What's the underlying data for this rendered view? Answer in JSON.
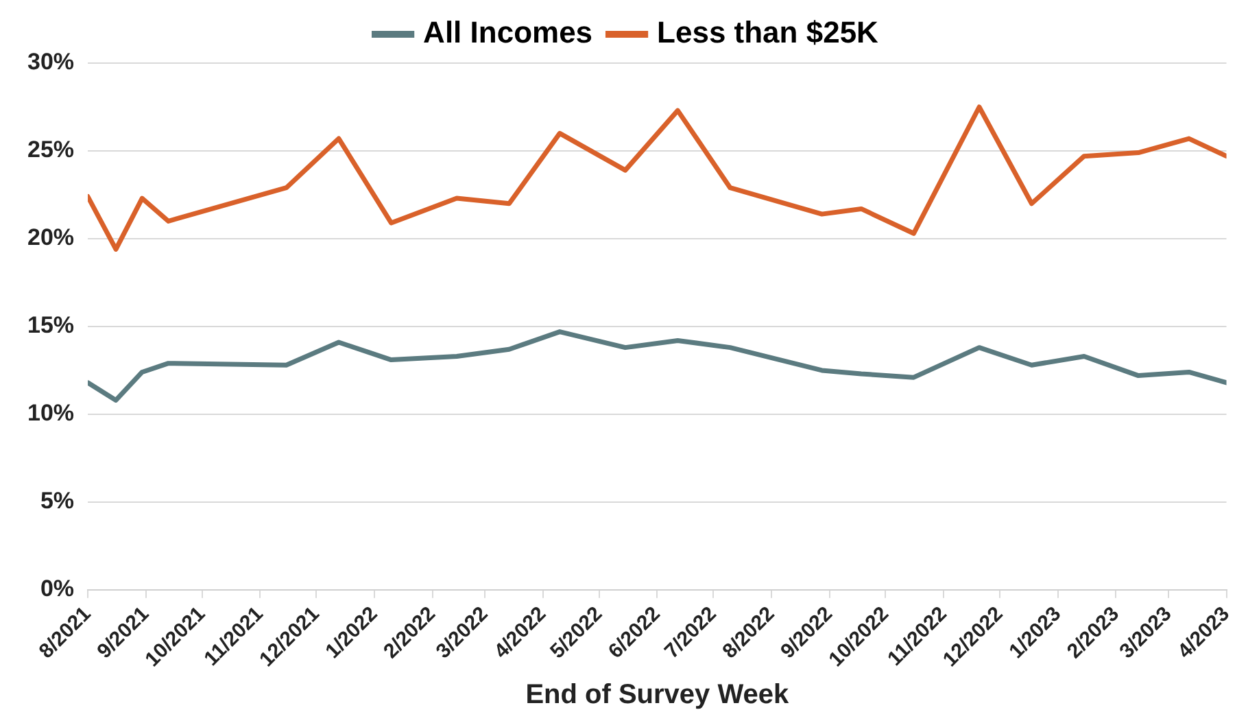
{
  "chart_data": {
    "type": "line",
    "xlabel": "End of Survey Week",
    "x": [
      "2021-08-01",
      "2021-08-16",
      "2021-08-30",
      "2021-09-13",
      "2021-11-15",
      "2021-12-13",
      "2022-01-10",
      "2022-02-14",
      "2022-03-14",
      "2022-04-10",
      "2022-05-15",
      "2022-06-12",
      "2022-07-10",
      "2022-08-28",
      "2022-09-18",
      "2022-10-16",
      "2022-11-20",
      "2022-12-18",
      "2023-01-15",
      "2023-02-13",
      "2023-03-12",
      "2023-04-01"
    ],
    "series": [
      {
        "name": "All Incomes",
        "color": "#5b7b80",
        "values": [
          11.8,
          10.8,
          12.4,
          12.9,
          12.8,
          14.1,
          13.1,
          13.3,
          13.7,
          14.7,
          13.8,
          14.2,
          13.8,
          12.5,
          12.3,
          12.1,
          13.8,
          12.8,
          13.3,
          12.2,
          12.4,
          11.8
        ]
      },
      {
        "name": "Less than $25K",
        "color": "#d9612a",
        "values": [
          22.4,
          19.4,
          22.3,
          21.0,
          22.9,
          25.7,
          20.9,
          22.3,
          22.0,
          26.0,
          23.9,
          27.3,
          22.9,
          21.4,
          21.7,
          20.3,
          27.5,
          22.0,
          24.7,
          24.9,
          25.7,
          24.7
        ]
      }
    ],
    "xlim": [
      "2021-08",
      "2023-04"
    ],
    "xticks": [
      {
        "value": "2021-08",
        "label": "8/2021"
      },
      {
        "value": "2021-09",
        "label": "9/2021"
      },
      {
        "value": "2021-10",
        "label": "10/2021"
      },
      {
        "value": "2021-11",
        "label": "11/2021"
      },
      {
        "value": "2021-12",
        "label": "12/2021"
      },
      {
        "value": "2022-01",
        "label": "1/2022"
      },
      {
        "value": "2022-02",
        "label": "2/2022"
      },
      {
        "value": "2022-03",
        "label": "3/2022"
      },
      {
        "value": "2022-04",
        "label": "4/2022"
      },
      {
        "value": "2022-05",
        "label": "5/2022"
      },
      {
        "value": "2022-06",
        "label": "6/2022"
      },
      {
        "value": "2022-07",
        "label": "7/2022"
      },
      {
        "value": "2022-08",
        "label": "8/2022"
      },
      {
        "value": "2022-09",
        "label": "9/2022"
      },
      {
        "value": "2022-10",
        "label": "10/2022"
      },
      {
        "value": "2022-11",
        "label": "11/2022"
      },
      {
        "value": "2022-12",
        "label": "12/2022"
      },
      {
        "value": "2023-01",
        "label": "1/2023"
      },
      {
        "value": "2023-02",
        "label": "2/2023"
      },
      {
        "value": "2023-03",
        "label": "3/2023"
      },
      {
        "value": "2023-04",
        "label": "4/2023"
      }
    ],
    "ylim": [
      0,
      30
    ],
    "yticks": [
      {
        "value": 0,
        "label": "0%"
      },
      {
        "value": 5,
        "label": "5%"
      },
      {
        "value": 10,
        "label": "10%"
      },
      {
        "value": 15,
        "label": "15%"
      },
      {
        "value": 20,
        "label": "20%"
      },
      {
        "value": 25,
        "label": "25%"
      },
      {
        "value": 30,
        "label": "30%"
      }
    ],
    "grid": "y",
    "legend": "top",
    "marker": "none",
    "line_style": "solid"
  }
}
